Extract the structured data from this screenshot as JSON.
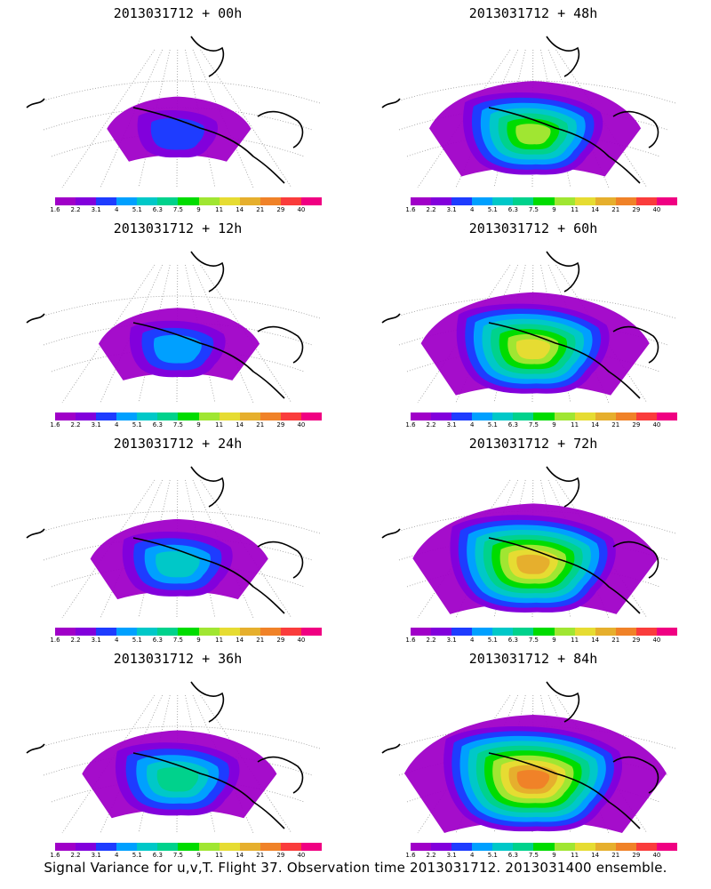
{
  "caption": "Signal Variance for u,v,T. Flight 37. Observation time 2013031712. 2013031400 ensemble.",
  "colorbar": {
    "labels": [
      "1.6",
      "2.2",
      "3.1",
      "4",
      "5.1",
      "6.3",
      "7.5",
      "9",
      "11",
      "14",
      "21",
      "29",
      "40"
    ],
    "colors": [
      "#a000c8",
      "#8200dc",
      "#1e3cff",
      "#00a0ff",
      "#00c8c8",
      "#00d28c",
      "#00dc00",
      "#a0e632",
      "#e6dc32",
      "#e6af2d",
      "#f08228",
      "#fa3c3c",
      "#f00082"
    ]
  },
  "panels": [
    {
      "title": "2013031712 + 00h",
      "lead_hours": 0
    },
    {
      "title": "2013031712 + 48h",
      "lead_hours": 48
    },
    {
      "title": "2013031712 + 12h",
      "lead_hours": 12
    },
    {
      "title": "2013031712 + 60h",
      "lead_hours": 60
    },
    {
      "title": "2013031712 + 24h",
      "lead_hours": 24
    },
    {
      "title": "2013031712 + 72h",
      "lead_hours": 72
    },
    {
      "title": "2013031712 + 36h",
      "lead_hours": 36
    },
    {
      "title": "2013031712 + 84h",
      "lead_hours": 84
    }
  ]
}
